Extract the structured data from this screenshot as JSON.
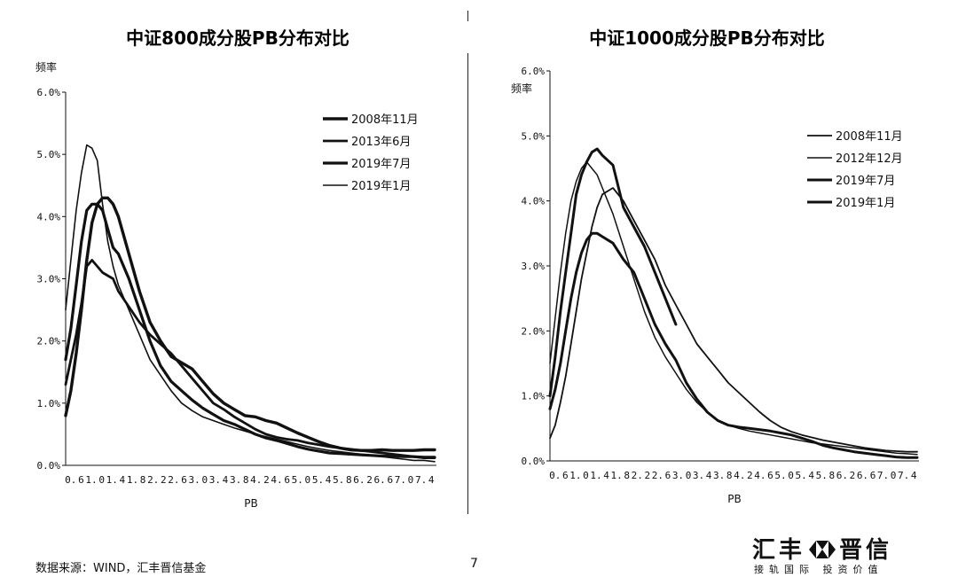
{
  "chart_data": [
    {
      "type": "line",
      "title": "中证800成分股PB分布对比",
      "ylabel": "频率",
      "xlabel": "PB",
      "ylim": [
        0,
        6
      ],
      "y_ticks": [
        "0.0%",
        "1.0%",
        "2.0%",
        "3.0%",
        "4.0%",
        "5.0%",
        "6.0%"
      ],
      "x_tick_labels": [
        "0.",
        "6",
        "1.",
        "0",
        "1.",
        "4",
        "1.",
        "8",
        "2.",
        "2",
        "2.",
        "6",
        "3.",
        "0",
        "3.",
        "4",
        "3.",
        "8",
        "4.",
        "2",
        "4.",
        "6",
        "5.",
        "0",
        "5.",
        "4",
        "5.",
        "8",
        "6.",
        "2",
        "6.",
        "6",
        "7.",
        "0",
        "7.",
        "4"
      ],
      "legend_placement": "top-right",
      "x": [
        0.6,
        0.7,
        0.8,
        0.9,
        1.0,
        1.1,
        1.2,
        1.3,
        1.4,
        1.5,
        1.6,
        1.8,
        2.0,
        2.2,
        2.4,
        2.6,
        2.8,
        3.0,
        3.2,
        3.4,
        3.6,
        3.8,
        4.0,
        4.2,
        4.4,
        4.6,
        4.8,
        5.0,
        5.2,
        5.4,
        5.6,
        5.8,
        6.0,
        6.2,
        6.4,
        6.6,
        6.8,
        7.0,
        7.2,
        7.4,
        7.6
      ],
      "series": [
        {
          "name": "2008年11月",
          "width": 3.4,
          "values": [
            0.8,
            1.2,
            1.8,
            2.5,
            3.3,
            3.9,
            4.2,
            4.3,
            4.3,
            4.2,
            4.0,
            3.4,
            2.8,
            2.3,
            2.0,
            1.75,
            1.65,
            1.55,
            1.35,
            1.15,
            1.0,
            0.9,
            0.8,
            0.78,
            0.72,
            0.68,
            0.6,
            0.52,
            0.45,
            0.38,
            0.32,
            0.28,
            0.25,
            0.24,
            0.24,
            0.25,
            0.24,
            0.24,
            0.24,
            0.25,
            0.25
          ]
        },
        {
          "name": "2013年6月",
          "width": 2.8,
          "values": [
            1.3,
            1.7,
            2.1,
            2.6,
            3.2,
            3.3,
            3.2,
            3.1,
            3.05,
            3.0,
            2.8,
            2.55,
            2.3,
            2.1,
            1.95,
            1.8,
            1.6,
            1.4,
            1.2,
            1.0,
            0.9,
            0.78,
            0.68,
            0.58,
            0.5,
            0.45,
            0.42,
            0.4,
            0.36,
            0.33,
            0.3,
            0.28,
            0.26,
            0.24,
            0.22,
            0.2,
            0.18,
            0.16,
            0.14,
            0.12,
            0.12
          ]
        },
        {
          "name": "2019年7月",
          "width": 3.2,
          "values": [
            1.7,
            2.2,
            2.9,
            3.6,
            4.1,
            4.2,
            4.2,
            4.1,
            3.8,
            3.5,
            3.4,
            3.0,
            2.5,
            2.0,
            1.6,
            1.35,
            1.2,
            1.05,
            0.92,
            0.82,
            0.72,
            0.66,
            0.58,
            0.5,
            0.44,
            0.4,
            0.35,
            0.3,
            0.26,
            0.23,
            0.2,
            0.19,
            0.18,
            0.17,
            0.16,
            0.15,
            0.15,
            0.14,
            0.14,
            0.13,
            0.13
          ]
        },
        {
          "name": "2019年1月",
          "width": 1.6,
          "values": [
            2.5,
            3.3,
            4.1,
            4.7,
            5.15,
            5.1,
            4.9,
            4.2,
            3.6,
            3.2,
            2.9,
            2.5,
            2.1,
            1.7,
            1.45,
            1.2,
            1.0,
            0.88,
            0.78,
            0.72,
            0.66,
            0.6,
            0.55,
            0.5,
            0.46,
            0.42,
            0.38,
            0.34,
            0.3,
            0.27,
            0.24,
            0.22,
            0.2,
            0.18,
            0.16,
            0.14,
            0.12,
            0.1,
            0.08,
            0.08,
            0.06
          ]
        }
      ]
    },
    {
      "type": "line",
      "title": "中证1000成分股PB分布对比",
      "ylabel": "频率",
      "xlabel": "PB",
      "ylim": [
        0,
        6
      ],
      "y_ticks": [
        "0.0%",
        "1.0%",
        "2.0%",
        "3.0%",
        "4.0%",
        "5.0%",
        "6.0%"
      ],
      "x_tick_labels": [
        "0.",
        "6",
        "1.",
        "0",
        "1.",
        "4",
        "1.",
        "8",
        "2.",
        "2",
        "2.",
        "6",
        "3.",
        "0",
        "3.",
        "4",
        "3.",
        "8",
        "4.",
        "2",
        "4.",
        "6",
        "5.",
        "0",
        "5.",
        "4",
        "5.",
        "8",
        "6.",
        "2",
        "6.",
        "6",
        "7.",
        "0",
        "7.",
        "4"
      ],
      "legend_placement": "top-right",
      "x": [
        0.6,
        0.7,
        0.8,
        0.9,
        1.0,
        1.1,
        1.2,
        1.3,
        1.4,
        1.5,
        1.6,
        1.8,
        2.0,
        2.2,
        2.4,
        2.6,
        2.8,
        3.0,
        3.2,
        3.4,
        3.6,
        3.8,
        4.0,
        4.2,
        4.4,
        4.6,
        4.8,
        5.0,
        5.2,
        5.4,
        5.6,
        5.8,
        6.0,
        6.2,
        6.4,
        6.6,
        6.8,
        7.0,
        7.2,
        7.4,
        7.6
      ],
      "series": [
        {
          "name": "2008年11月",
          "width": 1.8,
          "values": [
            0.35,
            0.55,
            0.9,
            1.3,
            1.8,
            2.3,
            2.8,
            3.2,
            3.6,
            3.9,
            4.1,
            4.2,
            4.0,
            3.7,
            3.4,
            3.1,
            2.7,
            2.4,
            2.1,
            1.8,
            1.6,
            1.4,
            1.2,
            1.05,
            0.9,
            0.75,
            0.62,
            0.52,
            0.45,
            0.4,
            0.36,
            0.32,
            0.29,
            0.26,
            0.23,
            0.2,
            0.18,
            0.16,
            0.15,
            0.14,
            0.14
          ]
        },
        {
          "name": "2012年12月",
          "width": 1.5,
          "values": [
            1.5,
            2.2,
            2.9,
            3.5,
            4.0,
            4.3,
            4.5,
            4.6,
            4.5,
            4.4,
            4.2,
            3.8,
            3.3,
            2.8,
            2.3,
            1.9,
            1.6,
            1.35,
            1.1,
            0.9,
            0.75,
            0.62,
            0.55,
            0.5,
            0.46,
            0.43,
            0.4,
            0.37,
            0.34,
            0.31,
            0.28,
            0.26,
            0.24,
            0.22,
            0.2,
            0.18,
            0.16,
            0.14,
            0.12,
            0.11,
            0.1
          ]
        },
        {
          "name": "2019年7月",
          "width": 3.0,
          "values": [
            1.0,
            1.6,
            2.3,
            2.9,
            3.5,
            4.1,
            4.4,
            4.6,
            4.75,
            4.8,
            4.7,
            4.55,
            3.9,
            3.6,
            3.3,
            2.9,
            2.5,
            2.1,
            null,
            null,
            null,
            null,
            null,
            null,
            null,
            null,
            null,
            null,
            null,
            null,
            null,
            null,
            null,
            null,
            null,
            null,
            null,
            null,
            null,
            null,
            null
          ]
        },
        {
          "name": "2019年1月",
          "width": 3.0,
          "values": [
            0.8,
            1.1,
            1.5,
            2.0,
            2.5,
            2.9,
            3.2,
            3.4,
            3.5,
            3.5,
            3.45,
            3.35,
            3.1,
            2.9,
            2.5,
            2.1,
            1.8,
            1.55,
            1.2,
            0.95,
            0.75,
            0.62,
            0.55,
            0.52,
            0.5,
            0.48,
            0.46,
            0.43,
            0.4,
            0.35,
            0.3,
            0.24,
            0.2,
            0.17,
            0.14,
            0.12,
            0.1,
            0.08,
            0.06,
            0.05,
            0.05
          ]
        }
      ]
    }
  ],
  "footer": {
    "source": "数据来源：WIND，汇丰晋信基金",
    "page_number": "7",
    "brand_left": "汇丰",
    "brand_right": "晋信",
    "slogan": "接轨国际  投资价值"
  }
}
